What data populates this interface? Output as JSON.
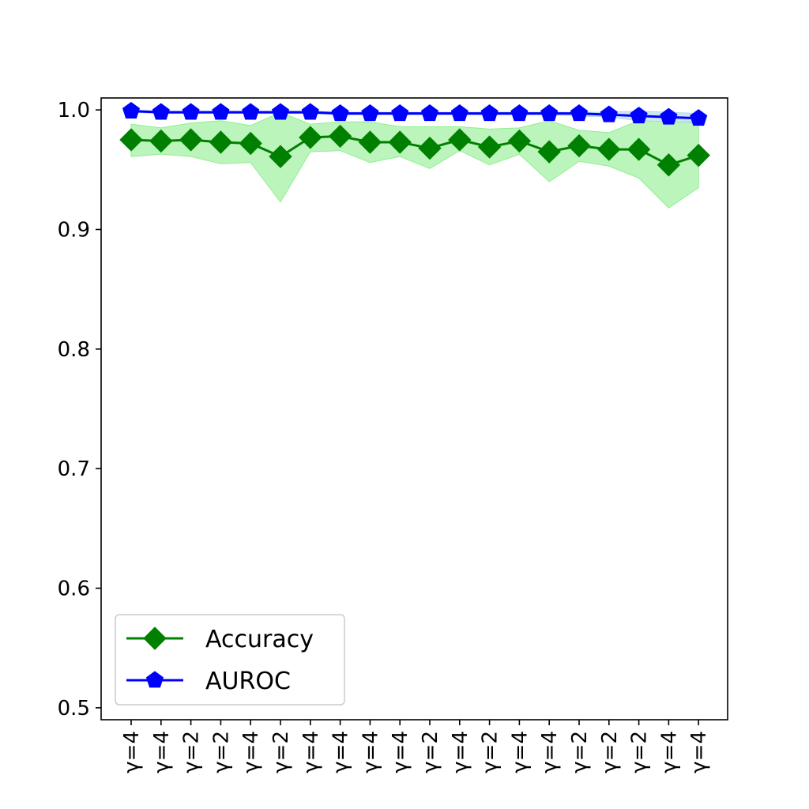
{
  "chart_data": {
    "type": "line",
    "x": [
      "γ=4",
      "γ=4",
      "γ=2",
      "γ=2",
      "γ=4",
      "γ=2",
      "γ=4",
      "γ=4",
      "γ=4",
      "γ=4",
      "γ=2",
      "γ=4",
      "γ=2",
      "γ=4",
      "γ=4",
      "γ=2",
      "γ=2",
      "γ=2",
      "γ=4",
      "γ=4"
    ],
    "ylim": [
      0.49,
      1.01
    ],
    "yticks": [
      0.5,
      0.6,
      0.7,
      0.8,
      0.9,
      1.0
    ],
    "ytick_labels": [
      "0.5",
      "0.6",
      "0.7",
      "0.8",
      "0.9",
      "1.0"
    ],
    "legend_position": "lower-left",
    "series": [
      {
        "name": "Accuracy",
        "color": "#008000",
        "band_color": "#90ee90",
        "marker": "diamond",
        "values": [
          0.975,
          0.974,
          0.975,
          0.973,
          0.972,
          0.961,
          0.977,
          0.978,
          0.973,
          0.973,
          0.968,
          0.975,
          0.969,
          0.974,
          0.965,
          0.97,
          0.967,
          0.967,
          0.954,
          0.962
        ],
        "lower": [
          0.961,
          0.963,
          0.961,
          0.955,
          0.956,
          0.923,
          0.965,
          0.966,
          0.956,
          0.961,
          0.951,
          0.966,
          0.954,
          0.963,
          0.94,
          0.957,
          0.953,
          0.943,
          0.918,
          0.935
        ],
        "upper": [
          0.988,
          0.985,
          0.989,
          0.991,
          0.987,
          0.998,
          0.988,
          0.99,
          0.99,
          0.986,
          0.986,
          0.986,
          0.984,
          0.985,
          0.991,
          0.983,
          0.981,
          0.991,
          0.99,
          0.99
        ]
      },
      {
        "name": "AUROC",
        "color": "#0000ff",
        "band_color": "#add8e6",
        "marker": "pentagon",
        "values": [
          0.999,
          0.998,
          0.998,
          0.998,
          0.998,
          0.998,
          0.998,
          0.997,
          0.997,
          0.997,
          0.997,
          0.997,
          0.997,
          0.997,
          0.997,
          0.997,
          0.996,
          0.995,
          0.994,
          0.993
        ],
        "lower": [
          0.998,
          0.997,
          0.997,
          0.997,
          0.997,
          0.997,
          0.997,
          0.996,
          0.996,
          0.996,
          0.996,
          0.996,
          0.996,
          0.996,
          0.996,
          0.995,
          0.994,
          0.991,
          0.99,
          0.989
        ],
        "upper": [
          1.0,
          0.999,
          0.999,
          0.999,
          0.999,
          0.999,
          0.999,
          0.998,
          0.998,
          0.998,
          0.998,
          0.998,
          0.998,
          0.998,
          0.998,
          0.998,
          0.998,
          0.999,
          0.998,
          0.997
        ]
      }
    ]
  }
}
